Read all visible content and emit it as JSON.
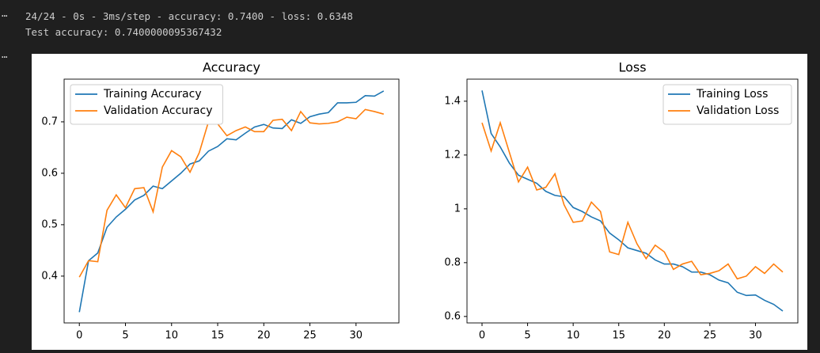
{
  "console": {
    "markers": [
      "⋯",
      "⋯"
    ],
    "lines": [
      "24/24 - 0s - 3ms/step - accuracy: 0.7400 - loss: 0.6348",
      "Test accuracy: 0.7400000095367432"
    ]
  },
  "chart_data": [
    {
      "type": "line",
      "title": "Accuracy",
      "legend": "upper left",
      "x": [
        0,
        1,
        2,
        3,
        4,
        5,
        6,
        7,
        8,
        9,
        10,
        11,
        12,
        13,
        14,
        15,
        16,
        17,
        18,
        19,
        20,
        21,
        22,
        23,
        24,
        25,
        26,
        27,
        28,
        29,
        30,
        31,
        32,
        33
      ],
      "xlim": [
        -1.65,
        34.65
      ],
      "xticks": [
        0,
        5,
        10,
        15,
        20,
        25,
        30
      ],
      "ylim": [
        0.309,
        0.783
      ],
      "yticks": [
        0.4,
        0.5,
        0.6,
        0.7
      ],
      "series": [
        {
          "name": "Training Accuracy",
          "color": "#1f77b4",
          "values": [
            0.33,
            0.43,
            0.445,
            0.495,
            0.515,
            0.53,
            0.548,
            0.557,
            0.575,
            0.57,
            0.585,
            0.6,
            0.618,
            0.624,
            0.643,
            0.652,
            0.667,
            0.665,
            0.678,
            0.69,
            0.695,
            0.688,
            0.687,
            0.704,
            0.697,
            0.71,
            0.715,
            0.718,
            0.737,
            0.737,
            0.738,
            0.751,
            0.75,
            0.76
          ]
        },
        {
          "name": "Validation Accuracy",
          "color": "#ff7f0e",
          "values": [
            0.398,
            0.43,
            0.428,
            0.528,
            0.558,
            0.533,
            0.57,
            0.572,
            0.525,
            0.612,
            0.644,
            0.632,
            0.602,
            0.64,
            0.7,
            0.696,
            0.673,
            0.683,
            0.69,
            0.681,
            0.681,
            0.703,
            0.705,
            0.683,
            0.72,
            0.698,
            0.696,
            0.697,
            0.7,
            0.709,
            0.706,
            0.724,
            0.72,
            0.715
          ]
        }
      ]
    },
    {
      "type": "line",
      "title": "Loss",
      "legend": "upper right",
      "x": [
        0,
        1,
        2,
        3,
        4,
        5,
        6,
        7,
        8,
        9,
        10,
        11,
        12,
        13,
        14,
        15,
        16,
        17,
        18,
        19,
        20,
        21,
        22,
        23,
        24,
        25,
        26,
        27,
        28,
        29,
        30,
        31,
        32,
        33
      ],
      "xlim": [
        -1.65,
        34.65
      ],
      "xticks": [
        0,
        5,
        10,
        15,
        20,
        25,
        30
      ],
      "ylim": [
        0.576,
        1.482
      ],
      "yticks": [
        0.6,
        0.8,
        1.0,
        1.2,
        1.4
      ],
      "series": [
        {
          "name": "Training Loss",
          "color": "#1f77b4",
          "values": [
            1.44,
            1.28,
            1.23,
            1.17,
            1.125,
            1.11,
            1.095,
            1.065,
            1.05,
            1.045,
            1.005,
            0.99,
            0.97,
            0.955,
            0.91,
            0.885,
            0.855,
            0.845,
            0.835,
            0.81,
            0.795,
            0.795,
            0.785,
            0.765,
            0.765,
            0.755,
            0.735,
            0.725,
            0.69,
            0.678,
            0.68,
            0.66,
            0.645,
            0.62
          ]
        },
        {
          "name": "Validation Loss",
          "color": "#ff7f0e",
          "values": [
            1.32,
            1.215,
            1.32,
            1.21,
            1.1,
            1.155,
            1.07,
            1.08,
            1.13,
            1.015,
            0.95,
            0.955,
            1.025,
            0.99,
            0.84,
            0.83,
            0.95,
            0.87,
            0.815,
            0.865,
            0.84,
            0.775,
            0.795,
            0.805,
            0.755,
            0.76,
            0.77,
            0.795,
            0.74,
            0.75,
            0.785,
            0.76,
            0.795,
            0.765
          ]
        }
      ]
    }
  ]
}
